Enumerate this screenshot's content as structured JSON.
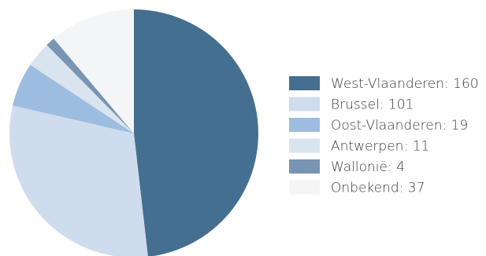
{
  "chart_data": {
    "type": "pie",
    "title": "",
    "legend_position": "right",
    "slices": [
      {
        "label": "West-Vlaanderen: 160",
        "name": "West-Vlaanderen",
        "value": 160,
        "color": "#456f90"
      },
      {
        "label": "Brussel: 101",
        "name": "Brussel",
        "value": 101,
        "color": "#cfdcee"
      },
      {
        "label": "Oost-Vlaanderen: 19",
        "name": "Oost-Vlaanderen",
        "value": 19,
        "color": "#9dbde0"
      },
      {
        "label": "Antwerpen: 11",
        "name": "Antwerpen",
        "value": 11,
        "color": "#dae4ee"
      },
      {
        "label": "Wallonië: 4",
        "name": "Wallonië",
        "value": 4,
        "color": "#7895b3"
      },
      {
        "label": "Onbekend: 37",
        "name": "Onbekend",
        "value": 37,
        "color": "#f3f5f6"
      }
    ]
  }
}
